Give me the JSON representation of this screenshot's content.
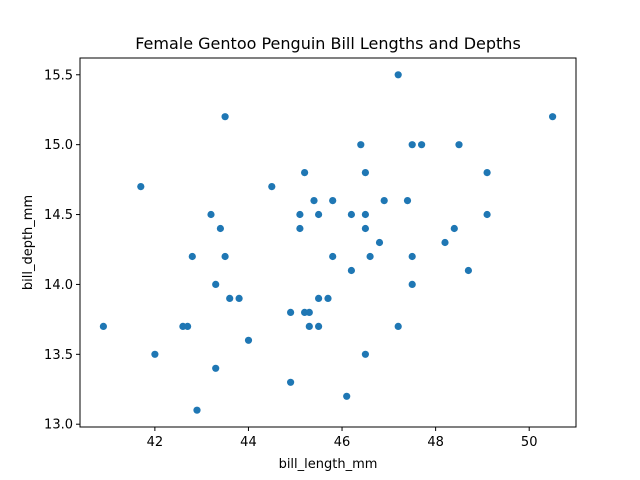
{
  "chart_data": {
    "type": "scatter",
    "title": "Female Gentoo Penguin Bill Lengths and Depths",
    "xlabel": "bill_length_mm",
    "ylabel": "bill_depth_mm",
    "xlim": [
      40.4,
      51.0
    ],
    "ylim": [
      12.98,
      15.62
    ],
    "xticks": [
      42,
      44,
      46,
      48,
      50
    ],
    "yticks": [
      13.0,
      13.5,
      14.0,
      14.5,
      15.0,
      15.5
    ],
    "xtick_labels": [
      "42",
      "44",
      "46",
      "48",
      "50"
    ],
    "ytick_labels": [
      "13.0",
      "13.5",
      "14.0",
      "14.5",
      "15.0",
      "15.5"
    ],
    "grid": false,
    "marker_color": "#1f77b4",
    "points": [
      [
        40.9,
        13.7
      ],
      [
        41.7,
        14.7
      ],
      [
        42.0,
        13.5
      ],
      [
        42.6,
        13.7
      ],
      [
        42.7,
        13.7
      ],
      [
        42.8,
        14.2
      ],
      [
        42.9,
        13.1
      ],
      [
        43.2,
        14.5
      ],
      [
        43.3,
        14.0
      ],
      [
        43.3,
        13.4
      ],
      [
        43.4,
        14.4
      ],
      [
        43.5,
        14.2
      ],
      [
        43.5,
        15.2
      ],
      [
        43.6,
        13.9
      ],
      [
        43.8,
        13.9
      ],
      [
        44.0,
        13.6
      ],
      [
        44.5,
        14.7
      ],
      [
        44.9,
        13.8
      ],
      [
        44.9,
        13.3
      ],
      [
        45.1,
        14.5
      ],
      [
        45.1,
        14.4
      ],
      [
        45.2,
        14.8
      ],
      [
        45.2,
        13.8
      ],
      [
        45.3,
        13.8
      ],
      [
        45.3,
        13.7
      ],
      [
        45.4,
        14.6
      ],
      [
        45.5,
        14.5
      ],
      [
        45.5,
        13.9
      ],
      [
        45.5,
        13.7
      ],
      [
        45.7,
        13.9
      ],
      [
        45.8,
        14.6
      ],
      [
        45.8,
        14.2
      ],
      [
        46.1,
        13.2
      ],
      [
        46.2,
        14.5
      ],
      [
        46.2,
        14.1
      ],
      [
        46.4,
        15.0
      ],
      [
        46.5,
        14.8
      ],
      [
        46.5,
        14.5
      ],
      [
        46.5,
        14.4
      ],
      [
        46.5,
        13.5
      ],
      [
        46.6,
        14.2
      ],
      [
        46.8,
        14.3
      ],
      [
        46.9,
        14.6
      ],
      [
        47.2,
        15.5
      ],
      [
        47.2,
        13.7
      ],
      [
        47.4,
        14.6
      ],
      [
        47.5,
        15.0
      ],
      [
        47.5,
        14.2
      ],
      [
        47.5,
        14.0
      ],
      [
        47.7,
        15.0
      ],
      [
        48.2,
        14.3
      ],
      [
        48.4,
        14.4
      ],
      [
        48.5,
        15.0
      ],
      [
        48.7,
        14.1
      ],
      [
        49.1,
        14.8
      ],
      [
        49.1,
        14.5
      ],
      [
        50.5,
        15.2
      ]
    ]
  }
}
